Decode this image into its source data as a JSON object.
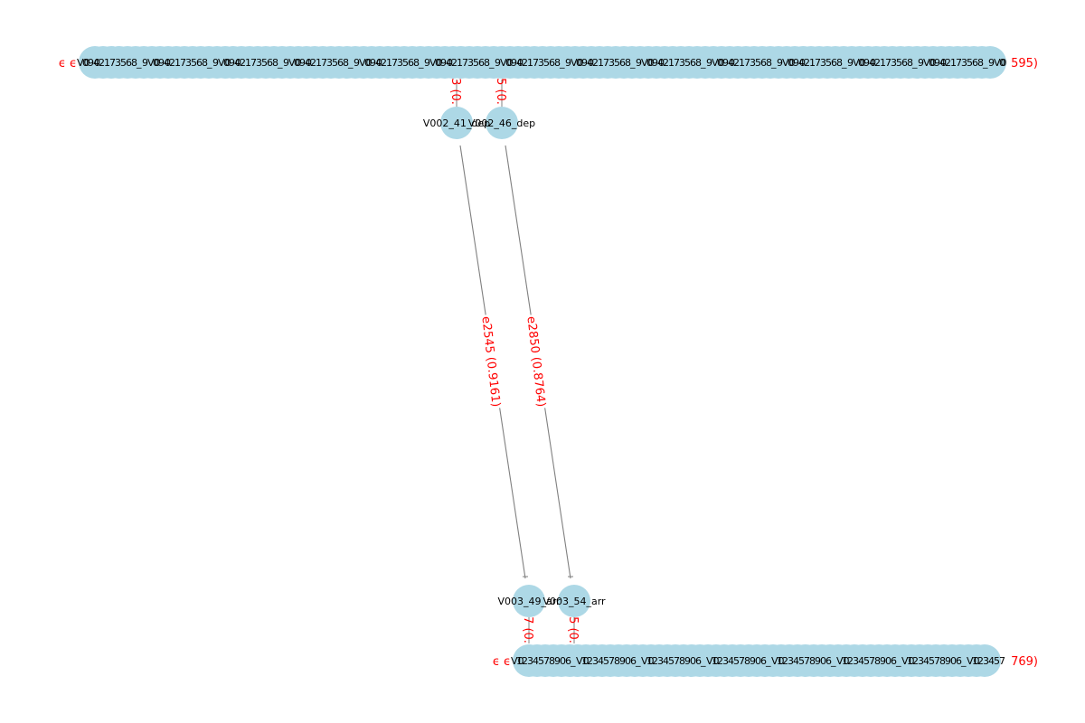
{
  "colors": {
    "node_fill": "#add8e6",
    "edge": "#808080",
    "label_text": "#000000",
    "edge_label_text": "#ff0000",
    "background": "#ffffff"
  },
  "chart_data": {
    "type": "network-graph",
    "nodes": [
      {
        "id": "V002_41_dep",
        "label": "V002_41_dep"
      },
      {
        "id": "V002_46_dep",
        "label": "V002_46_dep"
      },
      {
        "id": "V003_49_arr",
        "label": "V003_49_arr"
      },
      {
        "id": "V003_54_arr",
        "label": "V003_54_arr"
      }
    ],
    "edges": [
      {
        "id": "e2545",
        "source": "V002_41_dep",
        "target": "V003_49_arr",
        "label": "e2545 (0.9161)"
      },
      {
        "id": "e2850",
        "source": "V002_46_dep",
        "target": "V003_54_arr",
        "label": "e2850 (0.8764)"
      }
    ],
    "clusters": [
      {
        "name": "top-cluster",
        "overlapping_label_fragments": [
          "V0",
          "0",
          "90",
          "4",
          "2",
          "1",
          "7",
          "3",
          "5",
          "6",
          "8",
          "_",
          "9"
        ],
        "edge_label_tail": "595)"
      },
      {
        "name": "bottom-cluster",
        "overlapping_label_fragments": [
          "V0",
          "1",
          "2",
          "3",
          "4",
          "5",
          "7",
          "8",
          "9",
          "0",
          "6",
          "_"
        ],
        "edge_label_tail": "769)"
      }
    ],
    "partial_edge_labels": [
      "3 (0.",
      "5 (0.",
      "7 (0.",
      "5 (0."
    ],
    "cluster_head_glyphs": [
      "ϵ ϵ",
      "ϵ ϵ"
    ]
  }
}
